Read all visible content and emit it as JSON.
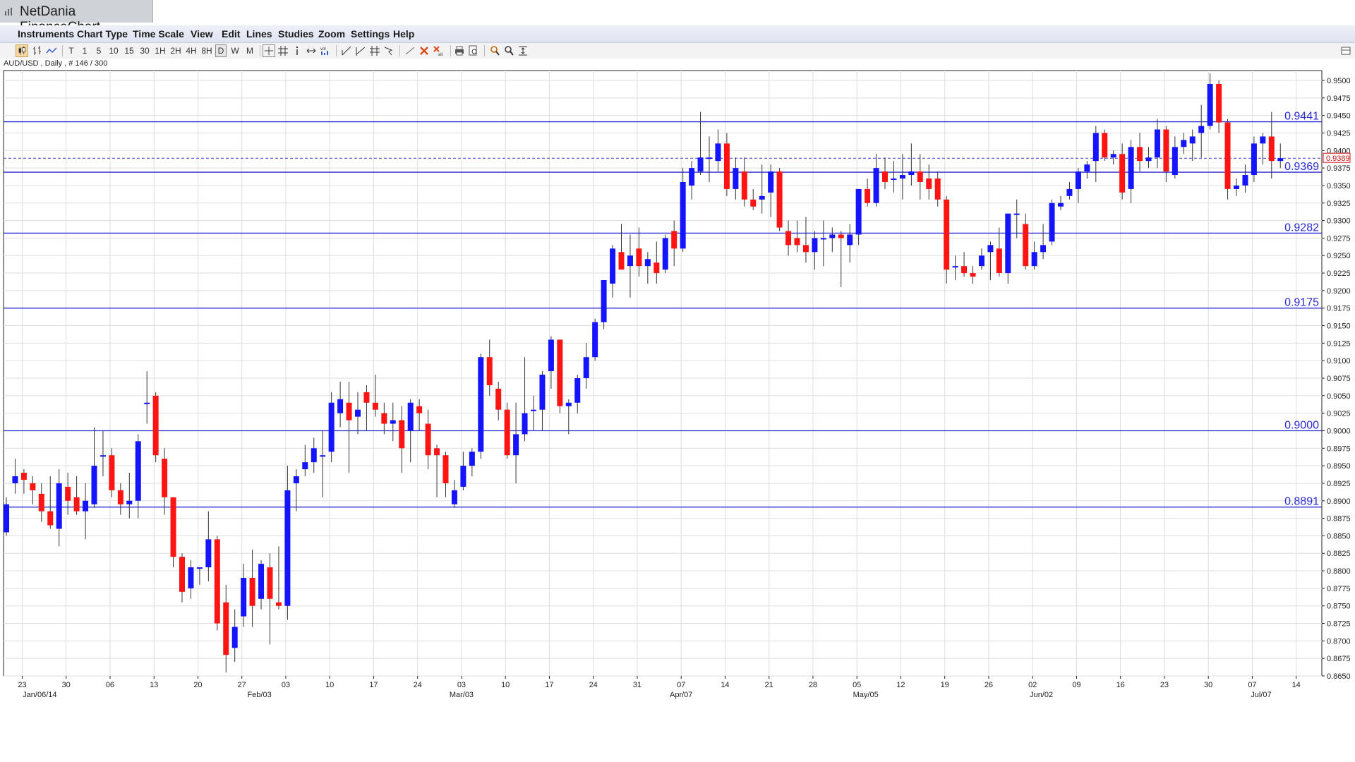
{
  "window": {
    "title": "NetDania FinanceChart",
    "menu": [
      "Instruments",
      "Chart Type",
      "Time Scale",
      "View",
      "Edit",
      "Lines",
      "Studies",
      "Zoom",
      "Settings",
      "Help"
    ]
  },
  "toolbar": {
    "timeframes": [
      "T",
      "1",
      "5",
      "10",
      "15",
      "30",
      "1H",
      "2H",
      "4H",
      "8H",
      "D",
      "W",
      "M"
    ],
    "selected_timeframe": "D",
    "tools": [
      "candlestick-icon",
      "bar-chart-icon",
      "line-chart-icon",
      "crosshair-icon",
      "grid-icon",
      "info-icon",
      "arrows-icon",
      "volume-icon",
      "trendline-icon",
      "channel-icon",
      "fork-icon",
      "arrow-tool-icon",
      "draw-line-icon",
      "delete-icon",
      "delete-all-icon",
      "print-icon",
      "print-preview-icon",
      "zoom-in-icon",
      "zoom-out-icon",
      "zoom-fit-icon"
    ]
  },
  "colors": {
    "up": "#1414ff",
    "down": "#ff1414",
    "level_line": "#2a2ad6",
    "grid": "#dddddd",
    "current_price": "#d01818"
  },
  "chart_data": {
    "type": "candlestick",
    "symbol_label": "AUD/USD , Daily , # 146 / 300",
    "ylim": [
      0.865,
      0.952
    ],
    "y_ticks": [
      "0.9500",
      "0.9475",
      "0.9450",
      "0.9425",
      "0.9400",
      "0.9375",
      "0.9350",
      "0.9325",
      "0.9300",
      "0.9275",
      "0.9250",
      "0.9225",
      "0.9200",
      "0.9175",
      "0.9150",
      "0.9125",
      "0.9100",
      "0.9075",
      "0.9050",
      "0.9025",
      "0.9000",
      "0.8975",
      "0.8950",
      "0.8925",
      "0.8900",
      "0.8875",
      "0.8850",
      "0.8825",
      "0.8800",
      "0.8775",
      "0.8750",
      "0.8725",
      "0.8700",
      "0.8675",
      "0.8650"
    ],
    "x_ticks": [
      "23",
      "30",
      "06",
      "13",
      "20",
      "27",
      "03",
      "10",
      "17",
      "24",
      "03",
      "10",
      "17",
      "24",
      "31",
      "07",
      "14",
      "21",
      "28",
      "05",
      "12",
      "19",
      "26",
      "02",
      "09",
      "16",
      "23",
      "30",
      "07",
      "14"
    ],
    "month_labels": [
      {
        "label": "Jan/06/14",
        "at": 3
      },
      {
        "label": "Feb/03",
        "at": 28
      },
      {
        "label": "Mar/03",
        "at": 51
      },
      {
        "label": "Apr/07",
        "at": 76
      },
      {
        "label": "May/05",
        "at": 97
      },
      {
        "label": "Jun/02",
        "at": 117
      },
      {
        "label": "Jul/07",
        "at": 142
      }
    ],
    "levels": [
      {
        "label": "0.9441",
        "value": 0.9441,
        "style": "solid"
      },
      {
        "label": "0.9369",
        "value": 0.9369,
        "style": "solid"
      },
      {
        "label": "0.9282",
        "value": 0.9282,
        "style": "solid"
      },
      {
        "label": "0.9175",
        "value": 0.9175,
        "style": "solid"
      },
      {
        "label": "0.9000",
        "value": 0.9,
        "style": "solid"
      },
      {
        "label": "0.8891",
        "value": 0.8891,
        "style": "solid"
      }
    ],
    "current_price": {
      "label": "0.9389",
      "value": 0.9389
    },
    "candles": [
      [
        0.8855,
        0.8905,
        0.885,
        0.8895
      ],
      [
        0.8925,
        0.896,
        0.891,
        0.8935
      ],
      [
        0.894,
        0.8945,
        0.891,
        0.893
      ],
      [
        0.8925,
        0.8935,
        0.8895,
        0.8915
      ],
      [
        0.891,
        0.8925,
        0.887,
        0.8885
      ],
      [
        0.8885,
        0.8935,
        0.886,
        0.8865
      ],
      [
        0.886,
        0.8945,
        0.8835,
        0.8925
      ],
      [
        0.892,
        0.894,
        0.888,
        0.89
      ],
      [
        0.8905,
        0.8935,
        0.888,
        0.8885
      ],
      [
        0.8885,
        0.8925,
        0.8845,
        0.89
      ],
      [
        0.8895,
        0.9005,
        0.889,
        0.895
      ],
      [
        0.8965,
        0.9,
        0.8935,
        0.8965
      ],
      [
        0.8965,
        0.8975,
        0.8905,
        0.8915
      ],
      [
        0.8915,
        0.8925,
        0.888,
        0.8895
      ],
      [
        0.8895,
        0.894,
        0.8875,
        0.89
      ],
      [
        0.89,
        0.8995,
        0.8875,
        0.8985
      ],
      [
        0.904,
        0.9085,
        0.901,
        0.904
      ],
      [
        0.905,
        0.9055,
        0.8955,
        0.8965
      ],
      [
        0.896,
        0.8975,
        0.888,
        0.8905
      ],
      [
        0.8905,
        0.8905,
        0.8805,
        0.882
      ],
      [
        0.882,
        0.8825,
        0.8755,
        0.877
      ],
      [
        0.8775,
        0.8815,
        0.876,
        0.8805
      ],
      [
        0.8805,
        0.8805,
        0.878,
        0.8805
      ],
      [
        0.8805,
        0.8885,
        0.8785,
        0.8845
      ],
      [
        0.8845,
        0.885,
        0.8715,
        0.8725
      ],
      [
        0.8755,
        0.878,
        0.8655,
        0.868
      ],
      [
        0.869,
        0.8745,
        0.867,
        0.872
      ],
      [
        0.8735,
        0.881,
        0.872,
        0.879
      ],
      [
        0.879,
        0.883,
        0.872,
        0.875
      ],
      [
        0.876,
        0.8815,
        0.8745,
        0.881
      ],
      [
        0.8805,
        0.8825,
        0.8695,
        0.876
      ],
      [
        0.8755,
        0.8835,
        0.8745,
        0.875
      ],
      [
        0.875,
        0.895,
        0.873,
        0.8915
      ],
      [
        0.8925,
        0.8945,
        0.8885,
        0.8935
      ],
      [
        0.8945,
        0.898,
        0.8935,
        0.8955
      ],
      [
        0.8955,
        0.899,
        0.894,
        0.8975
      ],
      [
        0.8965,
        0.9,
        0.8905,
        0.8965
      ],
      [
        0.897,
        0.9055,
        0.8955,
        0.904
      ],
      [
        0.9025,
        0.907,
        0.9005,
        0.9045
      ],
      [
        0.904,
        0.907,
        0.894,
        0.9015
      ],
      [
        0.902,
        0.9055,
        0.8995,
        0.903
      ],
      [
        0.9055,
        0.9065,
        0.9,
        0.904
      ],
      [
        0.904,
        0.908,
        0.902,
        0.903
      ],
      [
        0.9025,
        0.904,
        0.8995,
        0.901
      ],
      [
        0.901,
        0.904,
        0.8985,
        0.9015
      ],
      [
        0.9015,
        0.9035,
        0.894,
        0.8975
      ],
      [
        0.9,
        0.9045,
        0.8955,
        0.904
      ],
      [
        0.9035,
        0.9045,
        0.9,
        0.9025
      ],
      [
        0.901,
        0.903,
        0.8945,
        0.8965
      ],
      [
        0.8975,
        0.898,
        0.8905,
        0.8965
      ],
      [
        0.8965,
        0.897,
        0.8905,
        0.8925
      ],
      [
        0.8895,
        0.893,
        0.889,
        0.8915
      ],
      [
        0.892,
        0.897,
        0.8915,
        0.895
      ],
      [
        0.895,
        0.8975,
        0.8935,
        0.897
      ],
      [
        0.897,
        0.911,
        0.896,
        0.9105
      ],
      [
        0.9105,
        0.913,
        0.905,
        0.9065
      ],
      [
        0.906,
        0.907,
        0.9015,
        0.903
      ],
      [
        0.903,
        0.904,
        0.896,
        0.8965
      ],
      [
        0.8965,
        0.904,
        0.8925,
        0.8995
      ],
      [
        0.8995,
        0.9105,
        0.8985,
        0.9025
      ],
      [
        0.903,
        0.905,
        0.9,
        0.903
      ],
      [
        0.903,
        0.9085,
        0.9,
        0.908
      ],
      [
        0.9085,
        0.9135,
        0.906,
        0.913
      ],
      [
        0.913,
        0.913,
        0.9025,
        0.9035
      ],
      [
        0.9035,
        0.9045,
        0.8995,
        0.904
      ],
      [
        0.904,
        0.908,
        0.9025,
        0.9075
      ],
      [
        0.9075,
        0.9125,
        0.906,
        0.9105
      ],
      [
        0.9105,
        0.916,
        0.91,
        0.9155
      ],
      [
        0.9155,
        0.921,
        0.9145,
        0.9215
      ],
      [
        0.921,
        0.9265,
        0.919,
        0.926
      ],
      [
        0.9255,
        0.9295,
        0.9235,
        0.923
      ],
      [
        0.9235,
        0.928,
        0.919,
        0.925
      ],
      [
        0.926,
        0.929,
        0.922,
        0.9235
      ],
      [
        0.9235,
        0.9255,
        0.921,
        0.9245
      ],
      [
        0.924,
        0.927,
        0.921,
        0.9225
      ],
      [
        0.923,
        0.928,
        0.9225,
        0.9275
      ],
      [
        0.9285,
        0.93,
        0.9235,
        0.926
      ],
      [
        0.926,
        0.9375,
        0.9255,
        0.9355
      ],
      [
        0.935,
        0.9385,
        0.933,
        0.9375
      ],
      [
        0.937,
        0.9455,
        0.9365,
        0.939
      ],
      [
        0.939,
        0.942,
        0.9355,
        0.939
      ],
      [
        0.9385,
        0.943,
        0.937,
        0.941
      ],
      [
        0.941,
        0.9425,
        0.9335,
        0.9345
      ],
      [
        0.9345,
        0.939,
        0.933,
        0.9375
      ],
      [
        0.937,
        0.939,
        0.932,
        0.933
      ],
      [
        0.933,
        0.9345,
        0.9315,
        0.932
      ],
      [
        0.933,
        0.938,
        0.931,
        0.9335
      ],
      [
        0.934,
        0.938,
        0.9305,
        0.937
      ],
      [
        0.937,
        0.9375,
        0.9285,
        0.929
      ],
      [
        0.9285,
        0.93,
        0.925,
        0.9265
      ],
      [
        0.9275,
        0.93,
        0.9255,
        0.9265
      ],
      [
        0.9265,
        0.9305,
        0.924,
        0.9255
      ],
      [
        0.9255,
        0.9285,
        0.923,
        0.9275
      ],
      [
        0.9275,
        0.93,
        0.9235,
        0.9275
      ],
      [
        0.9275,
        0.929,
        0.9255,
        0.928
      ],
      [
        0.928,
        0.9285,
        0.9205,
        0.9275
      ],
      [
        0.9265,
        0.9295,
        0.924,
        0.928
      ],
      [
        0.928,
        0.9345,
        0.9265,
        0.9345
      ],
      [
        0.9345,
        0.936,
        0.932,
        0.9325
      ],
      [
        0.9325,
        0.9395,
        0.932,
        0.9375
      ],
      [
        0.937,
        0.939,
        0.9345,
        0.9355
      ],
      [
        0.936,
        0.9385,
        0.934,
        0.936
      ],
      [
        0.936,
        0.9395,
        0.933,
        0.9365
      ],
      [
        0.9365,
        0.941,
        0.935,
        0.937
      ],
      [
        0.937,
        0.9395,
        0.933,
        0.9355
      ],
      [
        0.936,
        0.938,
        0.933,
        0.9345
      ],
      [
        0.936,
        0.937,
        0.932,
        0.933
      ],
      [
        0.933,
        0.9335,
        0.921,
        0.923
      ],
      [
        0.9235,
        0.925,
        0.9215,
        0.9235
      ],
      [
        0.9235,
        0.9255,
        0.922,
        0.9225
      ],
      [
        0.9225,
        0.9235,
        0.921,
        0.922
      ],
      [
        0.9235,
        0.926,
        0.923,
        0.925
      ],
      [
        0.9255,
        0.927,
        0.9215,
        0.9265
      ],
      [
        0.926,
        0.929,
        0.922,
        0.9225
      ],
      [
        0.9225,
        0.931,
        0.921,
        0.931
      ],
      [
        0.931,
        0.933,
        0.9275,
        0.931
      ],
      [
        0.9295,
        0.931,
        0.923,
        0.9235
      ],
      [
        0.9235,
        0.927,
        0.923,
        0.9255
      ],
      [
        0.9255,
        0.9295,
        0.9245,
        0.9265
      ],
      [
        0.927,
        0.933,
        0.9265,
        0.9325
      ],
      [
        0.932,
        0.9335,
        0.9315,
        0.9325
      ],
      [
        0.9335,
        0.9355,
        0.933,
        0.9345
      ],
      [
        0.9345,
        0.9375,
        0.9325,
        0.937
      ],
      [
        0.937,
        0.9385,
        0.936,
        0.938
      ],
      [
        0.9385,
        0.9435,
        0.9355,
        0.9425
      ],
      [
        0.9425,
        0.943,
        0.9385,
        0.939
      ],
      [
        0.939,
        0.94,
        0.938,
        0.9395
      ],
      [
        0.9395,
        0.941,
        0.933,
        0.934
      ],
      [
        0.9345,
        0.9415,
        0.9325,
        0.9405
      ],
      [
        0.9405,
        0.9425,
        0.937,
        0.9385
      ],
      [
        0.9385,
        0.9405,
        0.9375,
        0.939
      ],
      [
        0.939,
        0.9445,
        0.9375,
        0.943
      ],
      [
        0.943,
        0.9435,
        0.9355,
        0.937
      ],
      [
        0.9365,
        0.942,
        0.936,
        0.9405
      ],
      [
        0.9405,
        0.9425,
        0.9395,
        0.9415
      ],
      [
        0.941,
        0.943,
        0.9385,
        0.942
      ],
      [
        0.9425,
        0.9465,
        0.939,
        0.9435
      ],
      [
        0.9435,
        0.951,
        0.943,
        0.9495
      ],
      [
        0.9495,
        0.95,
        0.9425,
        0.944
      ],
      [
        0.944,
        0.9445,
        0.933,
        0.9345
      ],
      [
        0.9345,
        0.936,
        0.9335,
        0.935
      ],
      [
        0.935,
        0.938,
        0.934,
        0.9365
      ],
      [
        0.9365,
        0.942,
        0.9355,
        0.941
      ],
      [
        0.941,
        0.9425,
        0.938,
        0.942
      ],
      [
        0.942,
        0.9455,
        0.936,
        0.9385
      ],
      [
        0.9385,
        0.941,
        0.9375,
        0.9389
      ]
    ]
  }
}
